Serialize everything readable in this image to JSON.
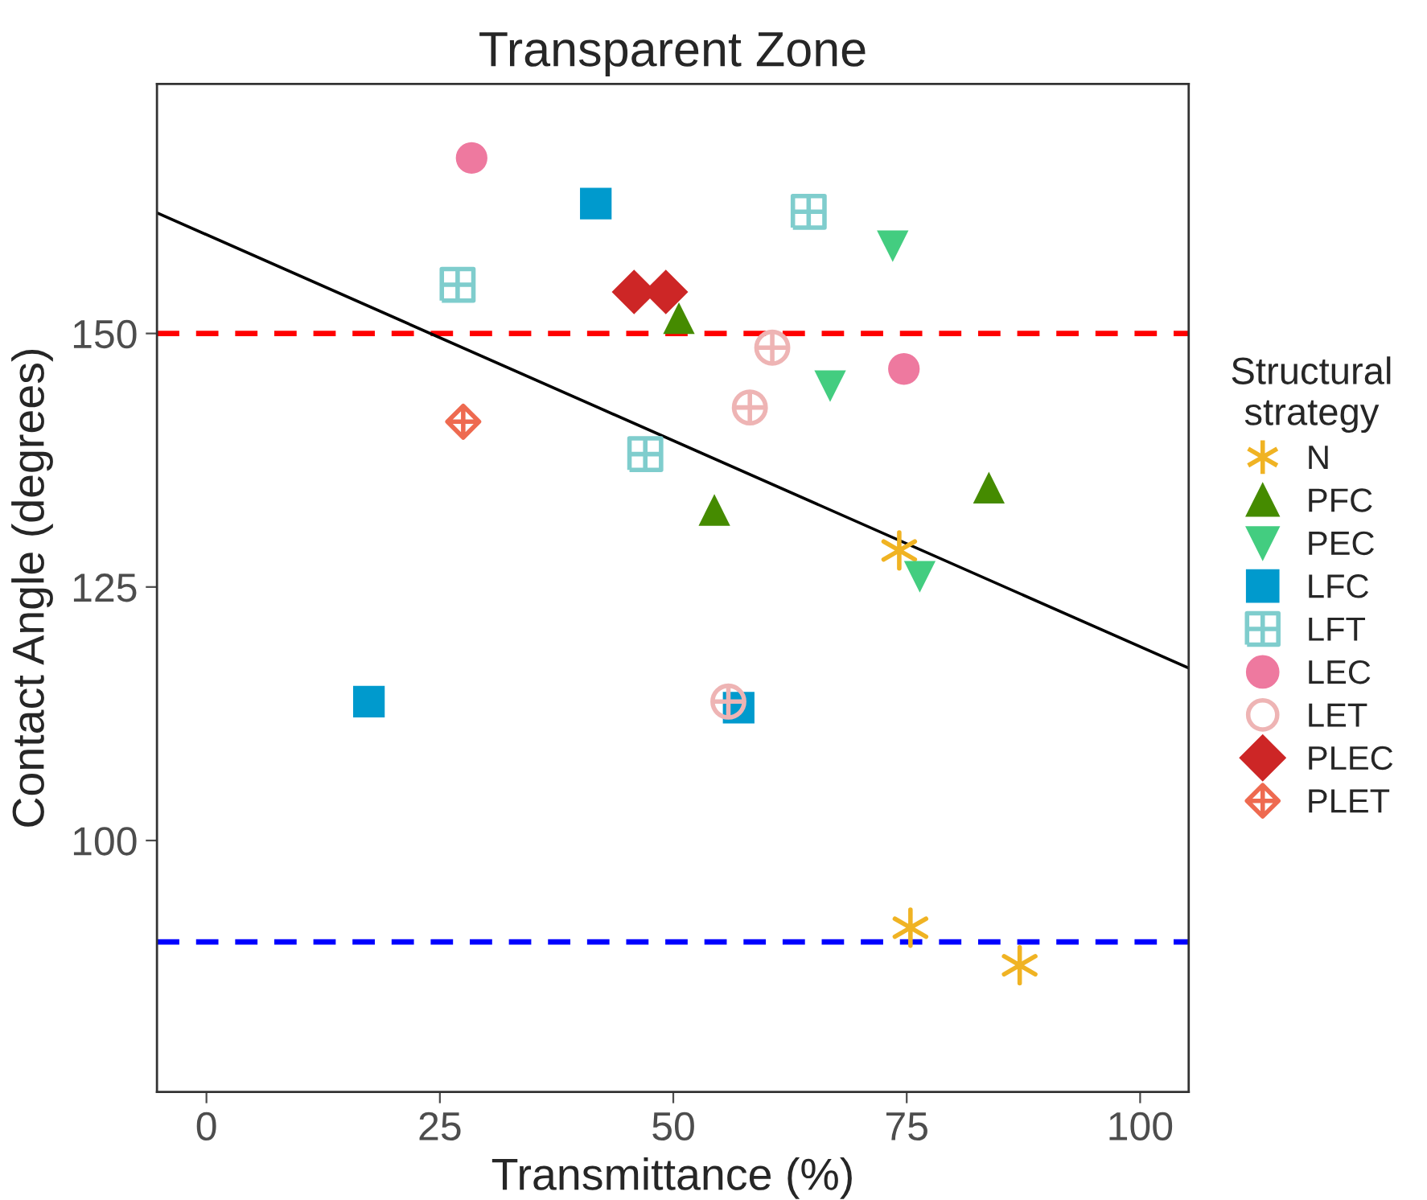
{
  "chart_data": {
    "type": "scatter",
    "title": "Transparent Zone",
    "xlabel": "Transmittance (%)",
    "ylabel": "Contact Angle (degrees)",
    "legend_title": "Structural\nstrategy",
    "xlim": [
      -5.3,
      105.2
    ],
    "ylim": [
      75.2,
      174.6
    ],
    "xticks": [
      0,
      25,
      50,
      75,
      100
    ],
    "yticks": [
      100,
      125,
      150
    ],
    "grid": false,
    "legend": "right",
    "series": [
      {
        "name": "N",
        "color": "#f0b323",
        "x": [
          74.2,
          75.4,
          87.1
        ],
        "values": [
          128.6,
          91.4,
          87.7
        ]
      },
      {
        "name": "PFC",
        "color": "#458b00",
        "x": [
          50.6,
          54.4,
          83.8
        ],
        "values": [
          151.5,
          132.6,
          134.8
        ]
      },
      {
        "name": "PEC",
        "color": "#43cd80",
        "x": [
          73.5,
          66.8,
          76.4
        ],
        "values": [
          158.6,
          144.8,
          126.0
        ]
      },
      {
        "name": "LFC",
        "color": "#009acd",
        "x": [
          41.7,
          17.4,
          57.0
        ],
        "values": [
          162.8,
          113.7,
          113.1
        ]
      },
      {
        "name": "LFT",
        "color": "#7fcdcd",
        "x": [
          26.9,
          47.0,
          64.5
        ],
        "values": [
          154.8,
          138.1,
          162.0
        ]
      },
      {
        "name": "LEC",
        "color": "#ee799f",
        "x": [
          28.4,
          74.7
        ],
        "values": [
          167.3,
          146.5
        ]
      },
      {
        "name": "LET",
        "color": "#eeb4b4",
        "x": [
          60.6,
          58.2,
          55.9
        ],
        "values": [
          148.6,
          142.7,
          113.7
        ]
      },
      {
        "name": "PLEC",
        "color": "#cd2626",
        "x": [
          45.8,
          49.2
        ],
        "values": [
          154.1,
          154.1
        ]
      },
      {
        "name": "PLET",
        "color": "#ee6a50",
        "x": [
          27.5
        ],
        "values": [
          141.3
        ]
      },
      {
        "type": "line",
        "color": "#000000",
        "x": [
          -5.3,
          105.2
        ],
        "values": [
          161.9,
          117.0
        ]
      }
    ],
    "ref_lines": [
      {
        "axis": "y",
        "value": 150,
        "color": "#ff0000",
        "line_style": "dashed"
      },
      {
        "axis": "y",
        "value": 90,
        "color": "#0000ff",
        "line_style": "dashed"
      }
    ]
  }
}
